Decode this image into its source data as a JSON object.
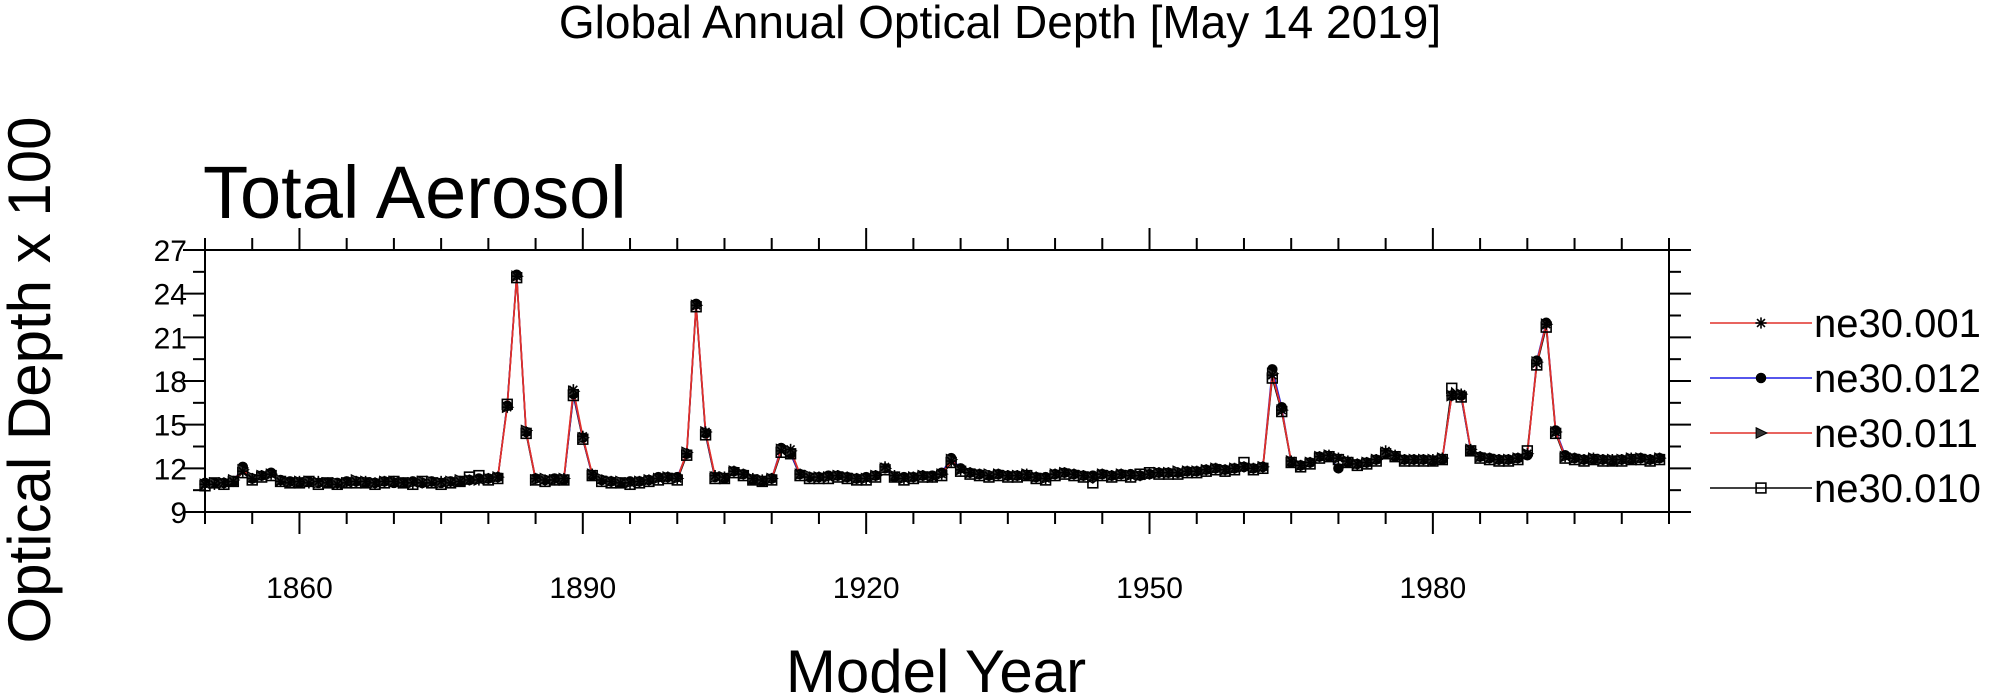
{
  "chart_title": "Global Annual Optical Depth [May 14 2019]",
  "chart_data": {
    "type": "line",
    "title": "Total Aerosol",
    "xlabel": "Model Year",
    "ylabel": "Optical Depth x 100",
    "xlim": [
      1850,
      2005
    ],
    "ylim": [
      9,
      27
    ],
    "xticks": [
      1860,
      1890,
      1920,
      1950,
      1980
    ],
    "yticks": [
      9,
      12,
      15,
      18,
      21,
      24,
      27
    ],
    "grid": false,
    "legend_position": "right",
    "x": [
      1850,
      1851,
      1852,
      1853,
      1854,
      1855,
      1856,
      1857,
      1858,
      1859,
      1860,
      1861,
      1862,
      1863,
      1864,
      1865,
      1866,
      1867,
      1868,
      1869,
      1870,
      1871,
      1872,
      1873,
      1874,
      1875,
      1876,
      1877,
      1878,
      1879,
      1880,
      1881,
      1882,
      1883,
      1884,
      1885,
      1886,
      1887,
      1888,
      1889,
      1890,
      1891,
      1892,
      1893,
      1894,
      1895,
      1896,
      1897,
      1898,
      1899,
      1900,
      1901,
      1902,
      1903,
      1904,
      1905,
      1906,
      1907,
      1908,
      1909,
      1910,
      1911,
      1912,
      1913,
      1914,
      1915,
      1916,
      1917,
      1918,
      1919,
      1920,
      1921,
      1922,
      1923,
      1924,
      1925,
      1926,
      1927,
      1928,
      1929,
      1930,
      1931,
      1932,
      1933,
      1934,
      1935,
      1936,
      1937,
      1938,
      1939,
      1940,
      1941,
      1942,
      1943,
      1944,
      1945,
      1946,
      1947,
      1948,
      1949,
      1950,
      1951,
      1952,
      1953,
      1954,
      1955,
      1956,
      1957,
      1958,
      1959,
      1960,
      1961,
      1962,
      1963,
      1964,
      1965,
      1966,
      1967,
      1968,
      1969,
      1970,
      1971,
      1972,
      1973,
      1974,
      1975,
      1976,
      1977,
      1978,
      1979,
      1980,
      1981,
      1982,
      1983,
      1984,
      1985,
      1986,
      1987,
      1988,
      1989,
      1990,
      1991,
      1992,
      1993,
      1994,
      1995,
      1996,
      1997,
      1998,
      1999,
      2000,
      2001,
      2002,
      2003,
      2004
    ],
    "series": [
      {
        "name": "ne30.001",
        "color": "#e0302a",
        "marker": "asterisk",
        "values": [
          10.9,
          10.9,
          11.0,
          11.1,
          11.8,
          11.3,
          11.5,
          11.6,
          11.1,
          11.0,
          11.1,
          11.0,
          11.1,
          11.0,
          10.9,
          11.0,
          11.1,
          11.1,
          11.0,
          11.1,
          11.1,
          11.0,
          11.0,
          11.0,
          11.0,
          11.1,
          11.0,
          11.1,
          11.2,
          11.2,
          11.3,
          11.4,
          16.2,
          25.2,
          14.5,
          11.3,
          11.2,
          11.2,
          11.3,
          17.4,
          14.2,
          11.6,
          11.2,
          11.1,
          11.0,
          11.0,
          11.1,
          11.2,
          11.3,
          11.4,
          11.3,
          13.0,
          23.2,
          14.5,
          11.5,
          11.4,
          11.8,
          11.6,
          11.3,
          11.2,
          11.3,
          13.2,
          13.3,
          11.6,
          11.4,
          11.4,
          11.4,
          11.5,
          11.4,
          11.3,
          11.3,
          11.5,
          12.1,
          11.5,
          11.3,
          11.4,
          11.5,
          11.4,
          11.6,
          12.5,
          11.9,
          11.7,
          11.6,
          11.5,
          11.6,
          11.5,
          11.5,
          11.6,
          11.4,
          11.3,
          11.6,
          11.7,
          11.6,
          11.5,
          11.4,
          11.6,
          11.5,
          11.6,
          11.5,
          11.5,
          11.6,
          11.7,
          11.7,
          11.7,
          11.8,
          11.8,
          11.9,
          12.0,
          11.9,
          12.0,
          12.1,
          12.0,
          12.1,
          18.4,
          16.0,
          12.5,
          12.2,
          12.4,
          12.8,
          12.9,
          12.7,
          12.5,
          12.3,
          12.4,
          12.6,
          13.2,
          12.9,
          12.6,
          12.6,
          12.6,
          12.6,
          12.7,
          17.0,
          17.1,
          13.3,
          12.8,
          12.7,
          12.6,
          12.6,
          12.7,
          13.0,
          19.2,
          21.9,
          14.5,
          12.8,
          12.7,
          12.6,
          12.7,
          12.6,
          12.6,
          12.6,
          12.7,
          12.7,
          12.6,
          12.7
        ]
      },
      {
        "name": "ne30.012",
        "color": "#1f1fe6",
        "marker": "circle",
        "values": [
          11.0,
          11.0,
          11.0,
          11.1,
          12.1,
          11.3,
          11.5,
          11.7,
          11.2,
          11.1,
          11.0,
          11.1,
          11.0,
          11.0,
          11.0,
          11.1,
          11.1,
          11.0,
          11.0,
          11.1,
          11.0,
          11.0,
          11.1,
          11.0,
          11.1,
          11.0,
          11.1,
          11.1,
          11.2,
          11.3,
          11.3,
          11.4,
          16.3,
          25.3,
          14.5,
          11.3,
          11.2,
          11.3,
          11.2,
          17.1,
          14.1,
          11.5,
          11.2,
          11.1,
          11.0,
          11.1,
          11.1,
          11.2,
          11.4,
          11.4,
          11.4,
          13.0,
          23.3,
          14.4,
          11.4,
          11.3,
          11.8,
          11.6,
          11.2,
          11.1,
          11.3,
          13.4,
          13.0,
          11.6,
          11.4,
          11.4,
          11.5,
          11.5,
          11.4,
          11.3,
          11.4,
          11.5,
          12.0,
          11.4,
          11.4,
          11.4,
          11.5,
          11.5,
          11.7,
          12.7,
          12.0,
          11.7,
          11.6,
          11.5,
          11.6,
          11.5,
          11.5,
          11.5,
          11.4,
          11.4,
          11.6,
          11.7,
          11.6,
          11.5,
          11.5,
          11.6,
          11.5,
          11.6,
          11.6,
          11.5,
          11.6,
          11.7,
          11.7,
          11.7,
          11.8,
          11.8,
          11.9,
          12.0,
          11.9,
          12.0,
          12.1,
          12.0,
          12.1,
          18.8,
          16.2,
          12.4,
          12.2,
          12.4,
          12.8,
          12.8,
          12.0,
          12.4,
          12.3,
          12.4,
          12.6,
          13.0,
          12.8,
          12.6,
          12.6,
          12.6,
          12.5,
          12.6,
          17.0,
          17.0,
          13.2,
          12.8,
          12.7,
          12.6,
          12.6,
          12.7,
          12.9,
          19.4,
          22.0,
          14.6,
          12.9,
          12.7,
          12.6,
          12.6,
          12.6,
          12.5,
          12.6,
          12.6,
          12.7,
          12.6,
          12.7
        ]
      },
      {
        "name": "ne30.011",
        "color": "#e0302a",
        "marker": "triangle-right",
        "values": [
          10.9,
          11.0,
          11.0,
          11.2,
          11.9,
          11.4,
          11.5,
          11.6,
          11.2,
          11.0,
          11.1,
          11.1,
          11.0,
          11.0,
          11.0,
          11.0,
          11.2,
          11.1,
          11.0,
          11.1,
          11.1,
          11.0,
          11.0,
          11.1,
          11.1,
          11.0,
          11.1,
          11.2,
          11.2,
          11.2,
          11.3,
          11.4,
          16.2,
          25.2,
          14.6,
          11.2,
          11.3,
          11.2,
          11.3,
          17.3,
          14.1,
          11.6,
          11.3,
          11.1,
          11.1,
          11.0,
          11.1,
          11.2,
          11.3,
          11.4,
          11.3,
          13.1,
          23.2,
          14.5,
          11.4,
          11.4,
          11.8,
          11.6,
          11.3,
          11.2,
          11.3,
          13.3,
          13.2,
          11.6,
          11.5,
          11.4,
          11.4,
          11.5,
          11.4,
          11.3,
          11.3,
          11.5,
          12.0,
          11.5,
          11.3,
          11.4,
          11.5,
          11.4,
          11.6,
          12.6,
          11.9,
          11.7,
          11.6,
          11.6,
          11.6,
          11.5,
          11.5,
          11.6,
          11.4,
          11.3,
          11.6,
          11.7,
          11.6,
          11.5,
          11.4,
          11.6,
          11.5,
          11.6,
          11.5,
          11.5,
          11.6,
          11.7,
          11.7,
          11.8,
          11.8,
          11.8,
          11.9,
          12.0,
          11.9,
          12.0,
          12.1,
          12.0,
          12.1,
          18.5,
          16.0,
          12.5,
          12.2,
          12.4,
          12.8,
          12.9,
          12.7,
          12.5,
          12.3,
          12.4,
          12.6,
          13.1,
          12.9,
          12.6,
          12.6,
          12.6,
          12.6,
          12.7,
          17.0,
          17.1,
          13.3,
          12.8,
          12.7,
          12.6,
          12.6,
          12.7,
          13.0,
          19.3,
          21.9,
          14.5,
          12.8,
          12.7,
          12.6,
          12.7,
          12.6,
          12.6,
          12.6,
          12.7,
          12.7,
          12.6,
          12.7
        ]
      },
      {
        "name": "ne30.010",
        "color": "#000000",
        "marker": "square",
        "values": [
          10.8,
          11.0,
          10.9,
          11.1,
          11.7,
          11.2,
          11.4,
          11.5,
          11.1,
          11.0,
          11.0,
          11.1,
          10.9,
          11.0,
          10.9,
          11.0,
          11.0,
          11.0,
          10.9,
          11.0,
          11.1,
          11.0,
          10.9,
          11.1,
          11.0,
          10.9,
          11.0,
          11.1,
          11.4,
          11.5,
          11.2,
          11.3,
          16.4,
          25.1,
          14.4,
          11.2,
          11.1,
          11.2,
          11.2,
          17.0,
          14.0,
          11.5,
          11.1,
          11.0,
          11.0,
          10.9,
          11.0,
          11.1,
          11.2,
          11.3,
          11.2,
          12.9,
          23.1,
          14.3,
          11.3,
          11.3,
          11.7,
          11.5,
          11.2,
          11.1,
          11.2,
          13.1,
          13.0,
          11.5,
          11.3,
          11.3,
          11.3,
          11.4,
          11.3,
          11.2,
          11.2,
          11.4,
          11.9,
          11.4,
          11.2,
          11.3,
          11.4,
          11.4,
          11.5,
          12.4,
          11.8,
          11.6,
          11.5,
          11.4,
          11.5,
          11.4,
          11.4,
          11.5,
          11.3,
          11.2,
          11.5,
          11.6,
          11.5,
          11.4,
          11.0,
          11.5,
          11.4,
          11.5,
          11.4,
          11.6,
          11.7,
          11.6,
          11.6,
          11.6,
          11.7,
          11.7,
          11.8,
          11.9,
          11.8,
          11.9,
          12.4,
          11.9,
          12.0,
          18.2,
          15.9,
          12.4,
          12.1,
          12.3,
          12.7,
          12.8,
          12.6,
          12.4,
          12.2,
          12.3,
          12.5,
          13.0,
          12.8,
          12.5,
          12.5,
          12.5,
          12.5,
          12.6,
          17.5,
          16.9,
          13.2,
          12.7,
          12.6,
          12.5,
          12.5,
          12.6,
          13.2,
          19.1,
          21.7,
          14.4,
          12.7,
          12.6,
          12.5,
          12.6,
          12.5,
          12.5,
          12.5,
          12.6,
          12.6,
          12.5,
          12.6
        ]
      }
    ]
  }
}
